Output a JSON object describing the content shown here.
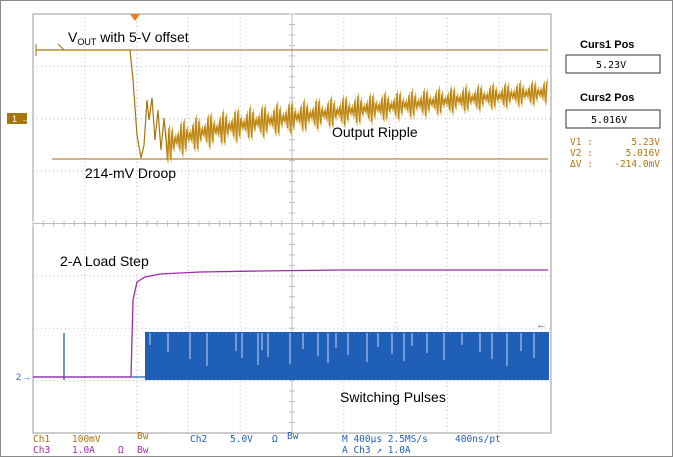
{
  "colors": {
    "ch1": "#a8740c",
    "ch1_hi": "#d49b1a",
    "ch2": "#1f5fb7",
    "ch3": "#a02aa8",
    "cursor": "#a06a14",
    "grid": "#bdbdbd",
    "frame": "#999999",
    "trigger": "#f07a1c"
  },
  "annotations": {
    "vout_main": "V",
    "vout_sub": "OUT",
    "vout_rest": " with 5-V offset",
    "output_ripple": "Output Ripple",
    "droop": "214-mV Droop",
    "load_step": "2-A Load Step",
    "switching": "Switching Pulses"
  },
  "markers": {
    "ch1": "1",
    "ch2": "2"
  },
  "side_panel": {
    "curs1_title": "Curs1 Pos",
    "curs1_value": "5.23V",
    "curs2_title": "Curs2 Pos",
    "curs2_value": "5.016V",
    "v1_label": "V1 :",
    "v1_value": "5.23V",
    "v2_label": "V2 :",
    "v2_value": "5.016V",
    "dv_label": "ΔV :",
    "dv_value": "-214.0mV"
  },
  "status": {
    "ch1_label": "Ch1",
    "ch1_scale": "100mV",
    "ch1_bw": "Bw",
    "ch2_label": "Ch2",
    "ch2_scale": "5.0V",
    "ch2_ohm": "Ω",
    "ch2_bw": "Bw",
    "ch3_label": "Ch3",
    "ch3_scale": "1.0A",
    "ch3_ohm": "Ω",
    "ch3_bw": "Bw",
    "timebase": "M 400μs 2.5MS/s",
    "resolution": "400ns/pt",
    "trigger": "A  Ch3  ↗  1.0A"
  }
}
